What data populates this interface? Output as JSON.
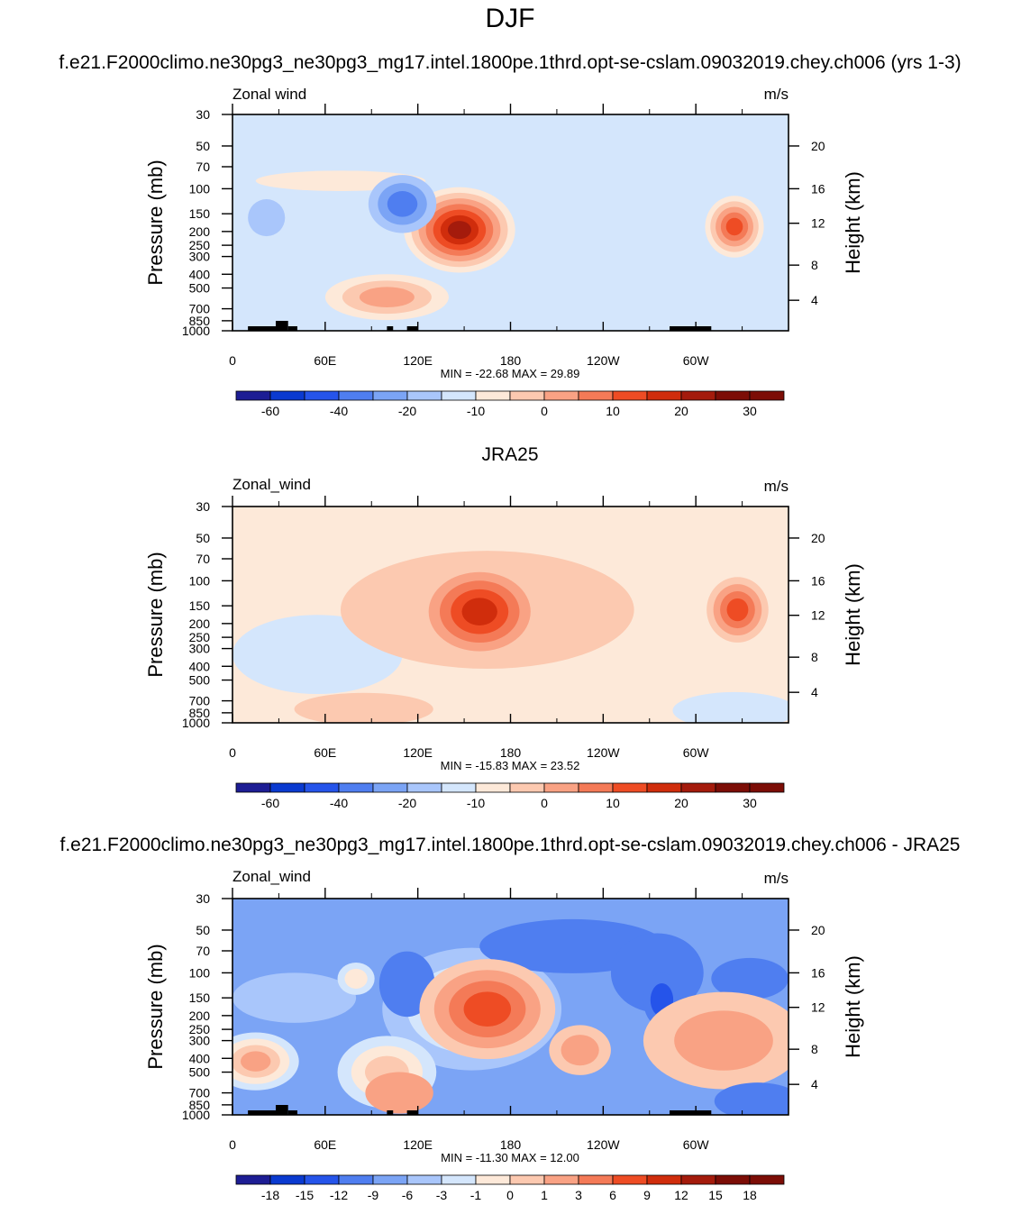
{
  "figure": {
    "main_title": "DJF",
    "colors": {
      "neg": [
        "#1d1d94",
        "#0a3ad0",
        "#2554ea",
        "#4f7ef0",
        "#7ba4f5",
        "#a9c6fb",
        "#d4e6fc"
      ],
      "pos": [
        "#fde9d9",
        "#fcc9b0",
        "#f9a284",
        "#f47a57",
        "#ee4c24",
        "#d02d0c",
        "#a41b0c",
        "#7c0d06"
      ],
      "terrain": "#000000",
      "frame": "#000000"
    }
  },
  "chart_data": [
    {
      "type": "heatmap",
      "title": "f.e21.F2000climo.ne30pg3_ne30pg3_mg17.intel.1800pe.1thrd.opt-se-cslam.09032019.chey.ch006 (yrs 1-3)",
      "variable_label": "Zonal wind",
      "units_label": "m/s",
      "xlabel": "",
      "ylabel": "Pressure (mb)",
      "y2label": "Height (km)",
      "x_ticks": [
        "0",
        "60E",
        "120E",
        "180",
        "120W",
        "60W"
      ],
      "x_tick_lon": [
        0,
        60,
        120,
        180,
        240,
        300
      ],
      "xlim": [
        0,
        360
      ],
      "y_ticks": [
        "30",
        "50",
        "70",
        "100",
        "150",
        "200",
        "250",
        "300",
        "400",
        "500",
        "700",
        "850",
        "1000"
      ],
      "y_tick_p": [
        30,
        50,
        70,
        100,
        150,
        200,
        250,
        300,
        400,
        500,
        700,
        850,
        1000
      ],
      "ylim": [
        1000,
        30
      ],
      "y2_ticks": [
        "20",
        "16",
        "12",
        "8",
        "4"
      ],
      "y2_tick_p": [
        50,
        100,
        175,
        345,
        610
      ],
      "stats": "MIN = -22.68  MAX =  29.89",
      "colorbar_labels": [
        "-60",
        "-40",
        "-20",
        "-10",
        "0",
        "10",
        "20",
        "30"
      ],
      "colorbar_label_boxes": [
        1,
        3,
        5,
        7,
        9,
        11,
        13,
        15
      ],
      "background_level": -1,
      "features": [
        {
          "lon": 147,
          "p": 195,
          "rx": 36,
          "ry": 2.0,
          "levels": [
            0,
            1,
            2,
            3,
            4,
            5,
            6
          ]
        },
        {
          "lon": 325,
          "p": 185,
          "rx": 19,
          "ry": 1.65,
          "levels": [
            0,
            1,
            2,
            3,
            4
          ]
        },
        {
          "lon": 100,
          "p": 580,
          "rx": 40,
          "ry": 1.45,
          "levels": [
            0,
            1,
            2
          ]
        },
        {
          "lon": 70,
          "p": 88,
          "rx": 55,
          "ry": 1.18,
          "levels": [
            0
          ]
        },
        {
          "lon": 110,
          "p": 128,
          "rx": 22,
          "ry": 1.6,
          "levels": [
            -2,
            -3,
            -4
          ]
        },
        {
          "lon": 22,
          "p": 160,
          "rx": 12,
          "ry": 1.35,
          "levels": [
            -2
          ]
        },
        {
          "lon": 280,
          "p": 190,
          "rx": 7,
          "ry": 1.15,
          "levels": [
            -1
          ]
        }
      ]
    },
    {
      "type": "heatmap",
      "title": "JRA25",
      "variable_label": "Zonal_wind",
      "units_label": "m/s",
      "xlabel": "",
      "ylabel": "Pressure (mb)",
      "y2label": "Height (km)",
      "x_ticks": [
        "0",
        "60E",
        "120E",
        "180",
        "120W",
        "60W"
      ],
      "x_tick_lon": [
        0,
        60,
        120,
        180,
        240,
        300
      ],
      "xlim": [
        0,
        360
      ],
      "y_ticks": [
        "30",
        "50",
        "70",
        "100",
        "150",
        "200",
        "250",
        "300",
        "400",
        "500",
        "700",
        "850",
        "1000"
      ],
      "y_tick_p": [
        30,
        50,
        70,
        100,
        150,
        200,
        250,
        300,
        400,
        500,
        700,
        850,
        1000
      ],
      "ylim": [
        1000,
        30
      ],
      "y2_ticks": [
        "20",
        "16",
        "12",
        "8",
        "4"
      ],
      "y2_tick_p": [
        50,
        100,
        175,
        345,
        610
      ],
      "stats": "MIN = -15.83  MAX =  23.52",
      "colorbar_labels": [
        "-60",
        "-40",
        "-20",
        "-10",
        "0",
        "10",
        "20",
        "30"
      ],
      "colorbar_label_boxes": [
        1,
        3,
        5,
        7,
        9,
        11,
        13,
        15
      ],
      "background_level": 0,
      "features": [
        {
          "lon": 55,
          "p": 330,
          "rx": 55,
          "ry": 1.9,
          "levels": [
            -1
          ]
        },
        {
          "lon": 117,
          "p": 155,
          "rx": 38,
          "ry": 1.7,
          "levels": [
            -1
          ]
        },
        {
          "lon": 115,
          "p": 155,
          "rx": 24,
          "ry": 1.45,
          "levels": [
            -2
          ]
        },
        {
          "lon": 165,
          "p": 160,
          "rx": 95,
          "ry": 2.6,
          "levels": [
            1
          ]
        },
        {
          "lon": 160,
          "p": 165,
          "rx": 33,
          "ry": 1.9,
          "levels": [
            2,
            3,
            4,
            5
          ]
        },
        {
          "lon": 327,
          "p": 160,
          "rx": 20,
          "ry": 1.7,
          "levels": [
            1,
            2,
            3,
            4
          ]
        },
        {
          "lon": 85,
          "p": 800,
          "rx": 45,
          "ry": 1.3,
          "levels": [
            1
          ]
        },
        {
          "lon": 325,
          "p": 820,
          "rx": 40,
          "ry": 1.35,
          "levels": [
            -1
          ]
        }
      ]
    },
    {
      "type": "heatmap",
      "title": "f.e21.F2000climo.ne30pg3_ne30pg3_mg17.intel.1800pe.1thrd.opt-se-cslam.09032019.chey.ch006 - JRA25",
      "variable_label": "Zonal_wind",
      "units_label": "m/s",
      "xlabel": "",
      "ylabel": "Pressure (mb)",
      "y2label": "Height (km)",
      "x_ticks": [
        "0",
        "60E",
        "120E",
        "180",
        "120W",
        "60W"
      ],
      "x_tick_lon": [
        0,
        60,
        120,
        180,
        240,
        300
      ],
      "xlim": [
        0,
        360
      ],
      "y_ticks": [
        "30",
        "50",
        "70",
        "100",
        "150",
        "200",
        "250",
        "300",
        "400",
        "500",
        "700",
        "850",
        "1000"
      ],
      "y_tick_p": [
        30,
        50,
        70,
        100,
        150,
        200,
        250,
        300,
        400,
        500,
        700,
        850,
        1000
      ],
      "ylim": [
        1000,
        30
      ],
      "y2_ticks": [
        "20",
        "16",
        "12",
        "8",
        "4"
      ],
      "y2_tick_p": [
        50,
        100,
        175,
        345,
        610
      ],
      "stats": "MIN = -11.30  MAX =  12.00",
      "colorbar_labels": [
        "-18",
        "-15",
        "-12",
        "-9",
        "-6",
        "-3",
        "-1",
        "0",
        "1",
        "3",
        "6",
        "9",
        "12",
        "15",
        "18"
      ],
      "colorbar_label_boxes": [
        1,
        2,
        3,
        4,
        5,
        6,
        7,
        8,
        9,
        10,
        11,
        12,
        13,
        14,
        15
      ],
      "background_level": -3,
      "features": [
        {
          "lon": 155,
          "p": 180,
          "rx": 58,
          "ry": 2.7,
          "levels": [
            -2,
            -1,
            0
          ]
        },
        {
          "lon": 220,
          "p": 65,
          "rx": 60,
          "ry": 1.55,
          "levels": [
            -4
          ]
        },
        {
          "lon": 275,
          "p": 100,
          "rx": 30,
          "ry": 1.9,
          "levels": [
            -4
          ]
        },
        {
          "lon": 335,
          "p": 110,
          "rx": 25,
          "ry": 1.4,
          "levels": [
            -4
          ]
        },
        {
          "lon": 113,
          "p": 120,
          "rx": 18,
          "ry": 1.7,
          "levels": [
            -4
          ]
        },
        {
          "lon": 40,
          "p": 150,
          "rx": 40,
          "ry": 1.5,
          "levels": [
            -2
          ]
        },
        {
          "lon": 80,
          "p": 110,
          "rx": 12,
          "ry": 1.3,
          "levels": [
            -1,
            0
          ]
        },
        {
          "lon": 278,
          "p": 155,
          "rx": 12,
          "ry": 1.55,
          "levels": [
            -4,
            -5
          ]
        },
        {
          "lon": 165,
          "p": 180,
          "rx": 44,
          "ry": 2.25,
          "levels": [
            1,
            2,
            3,
            4
          ]
        },
        {
          "lon": 225,
          "p": 350,
          "rx": 20,
          "ry": 1.5,
          "levels": [
            1,
            2
          ]
        },
        {
          "lon": 318,
          "p": 300,
          "rx": 52,
          "ry": 2.2,
          "levels": [
            1,
            2
          ]
        },
        {
          "lon": 15,
          "p": 420,
          "rx": 28,
          "ry": 1.6,
          "levels": [
            -1,
            0,
            1,
            2
          ]
        },
        {
          "lon": 100,
          "p": 500,
          "rx": 32,
          "ry": 1.8,
          "levels": [
            -1,
            0,
            1
          ]
        },
        {
          "lon": 108,
          "p": 700,
          "rx": 22,
          "ry": 1.4,
          "levels": [
            2
          ]
        },
        {
          "lon": 340,
          "p": 800,
          "rx": 28,
          "ry": 1.35,
          "levels": [
            -4
          ]
        }
      ]
    }
  ]
}
